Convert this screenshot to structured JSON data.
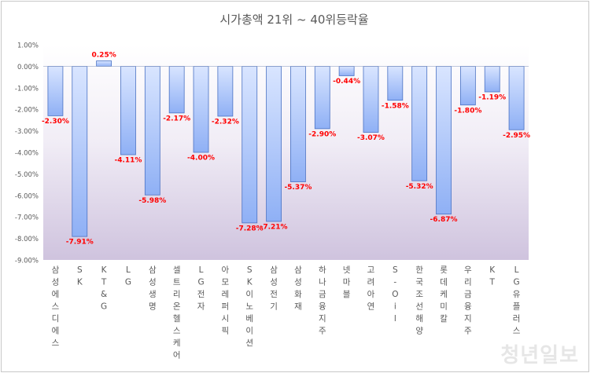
{
  "chart_data": {
    "type": "bar",
    "title": "시가총액 21위 ~ 40위등락율",
    "categories": [
      "삼성에스디에스",
      "SK",
      "KT&G",
      "LG",
      "삼성생명",
      "셀트리온헬스케어",
      "LG전자",
      "아모레퍼시픽",
      "SK이노베이션",
      "삼성전기",
      "삼성화재",
      "하나금융지주",
      "넷마블",
      "고려아연",
      "S-Oil",
      "한국조선해양",
      "롯데케미칼",
      "우리금융지주",
      "KT",
      "LG유플러스"
    ],
    "values": [
      -2.3,
      -7.91,
      0.25,
      -4.11,
      -5.98,
      -2.17,
      -4.0,
      -2.32,
      -7.28,
      -7.21,
      -5.37,
      -2.9,
      -0.44,
      -3.07,
      -1.58,
      -5.32,
      -6.87,
      -1.8,
      -1.19,
      -2.95
    ],
    "value_labels": [
      "-2.30%",
      "-7.91%",
      "0.25%",
      "-4.11%",
      "-5.98%",
      "-2.17%",
      "-4.00%",
      "-2.32%",
      "-7.28%",
      "-7.21%",
      "-5.37%",
      "-2.90%",
      "-0.44%",
      "-3.07%",
      "-1.58%",
      "-5.32%",
      "-6.87%",
      "-1.80%",
      "-1.19%",
      "-2.95%"
    ],
    "yticks": [
      "1.00%",
      "0.00%",
      "-1.00%",
      "-2.00%",
      "-3.00%",
      "-4.00%",
      "-5.00%",
      "-6.00%",
      "-7.00%",
      "-8.00%",
      "-9.00%"
    ],
    "ylim": [
      -9,
      1
    ],
    "grid": false,
    "legend": "none",
    "colors": {
      "bar_fill_top": "#d9e5ff",
      "bar_fill_bottom": "#8fb0f5",
      "bar_stroke": "#4a72c4",
      "value_label": "#ff0000",
      "plot_bg_top": "#ffffff",
      "plot_bg_bottom": "#cfc3de",
      "axis_text": "#595959"
    }
  },
  "watermark": "청년일보"
}
